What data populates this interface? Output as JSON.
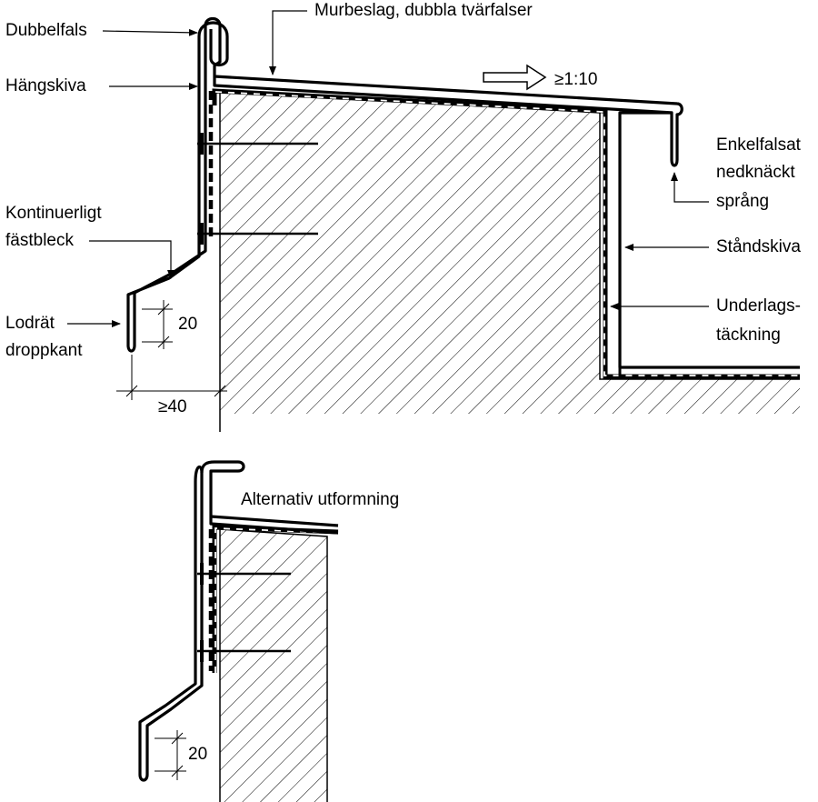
{
  "labels": {
    "dubbelfals": "Dubbelfals",
    "murbeslag": "Murbeslag, dubbla tvärfalser",
    "hangskiva": "Hängskiva",
    "slope": "≥1:10",
    "enkelfalsat_1": "Enkelfalsat",
    "enkelfalsat_2": "nedknäckt",
    "enkelfalsat_3": "språng",
    "kontinuerligt_1": "Kontinuerligt",
    "kontinuerligt_2": "fästbleck",
    "standskiva": "Ståndskiva",
    "underlags_1": "Underlags-",
    "underlags_2": "täckning",
    "lodrat_1": "Lodrät",
    "lodrat_2": "droppkant",
    "dim_20_top": "20",
    "dim_40": "≥40",
    "alternativ": "Alternativ utformning",
    "dim_20_bottom": "20"
  },
  "colors": {
    "line": "#000000",
    "background": "#ffffff"
  }
}
